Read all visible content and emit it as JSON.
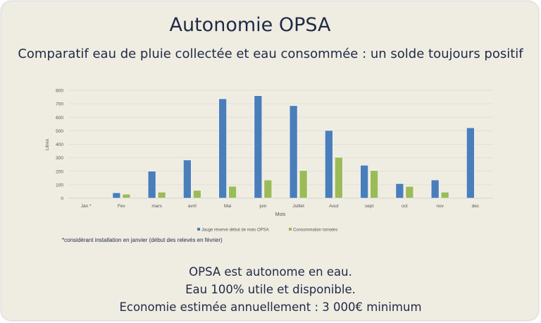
{
  "title": "Autonomie OPSA",
  "subtitle": "Comparatif eau de pluie collectée et eau consommée : un solde toujours positif",
  "footnote": "*considérant installation en janvier (début des relevés en février)",
  "conclusion": [
    "OPSA est autonome en eau.",
    "Eau 100% utile et disponible.",
    "Economie estimée annuellement : 3 000€ minimum"
  ],
  "chart_data": {
    "type": "bar",
    "xlabel": "Mois",
    "ylabel": "Litres",
    "ylim": [
      0,
      800
    ],
    "yticks": [
      0,
      100,
      200,
      300,
      400,
      500,
      600,
      700,
      800
    ],
    "categories": [
      "Jan *",
      "Fev",
      "mars",
      "avril",
      "Mai",
      "juin",
      "Juillet",
      "Aout",
      "sept",
      "oct",
      "nov",
      "dec"
    ],
    "series": [
      {
        "name": "Jauge réserve début de mois OPSA",
        "color": "#4a7ebb",
        "values": [
          0,
          40,
          200,
          283,
          737,
          760,
          686,
          502,
          244,
          108,
          135,
          522
        ]
      },
      {
        "name": "Consommation tomates",
        "color": "#9bbb59",
        "values": [
          0,
          30,
          45,
          58,
          88,
          135,
          205,
          303,
          205,
          87,
          45,
          0
        ]
      }
    ],
    "grid": true,
    "legend": "bottom"
  }
}
